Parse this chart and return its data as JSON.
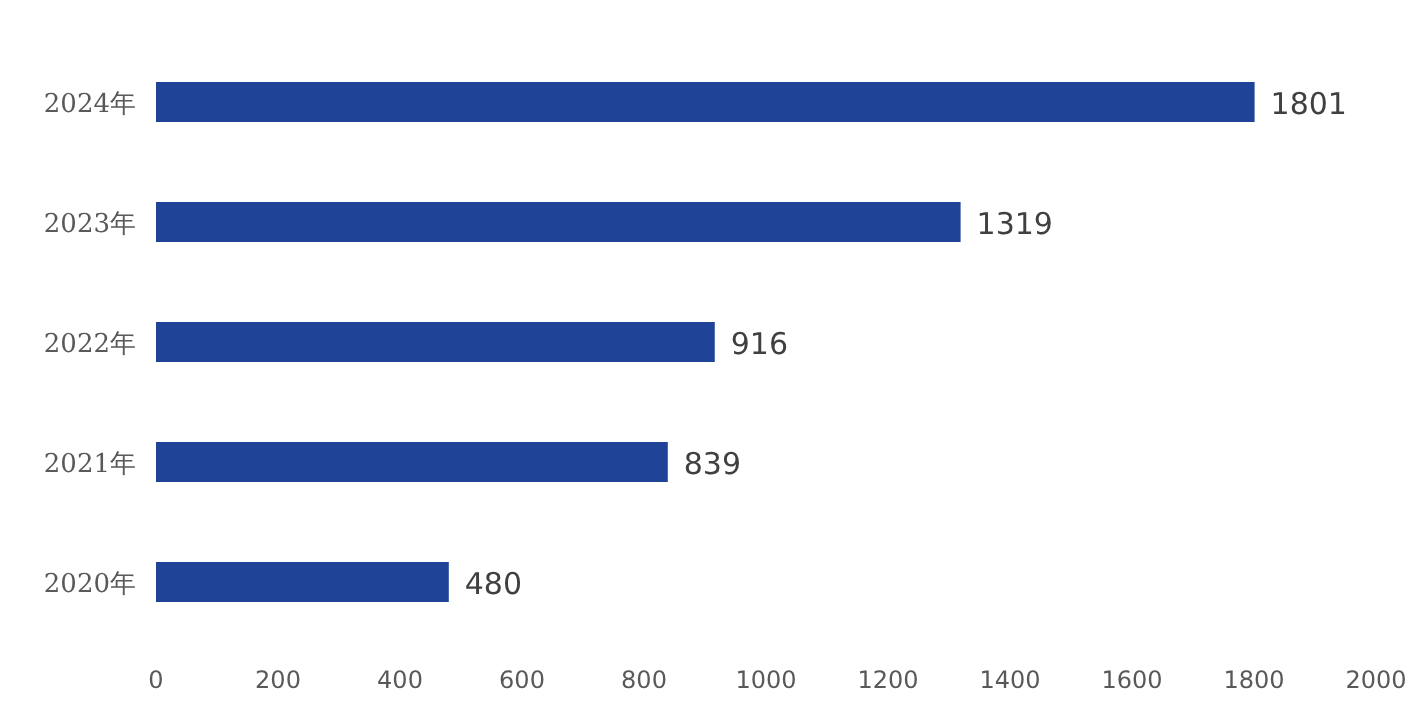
{
  "chart_data": {
    "type": "bar",
    "orientation": "horizontal",
    "categories": [
      "2024年",
      "2023年",
      "2022年",
      "2021年",
      "2020年"
    ],
    "values": [
      1801,
      1319,
      916,
      839,
      480
    ],
    "color": "#1f4396",
    "xlim": [
      0,
      2000
    ],
    "xticks": [
      0,
      200,
      400,
      600,
      800,
      1000,
      1200,
      1400,
      1600,
      1800,
      2000
    ],
    "data_labels": true
  }
}
